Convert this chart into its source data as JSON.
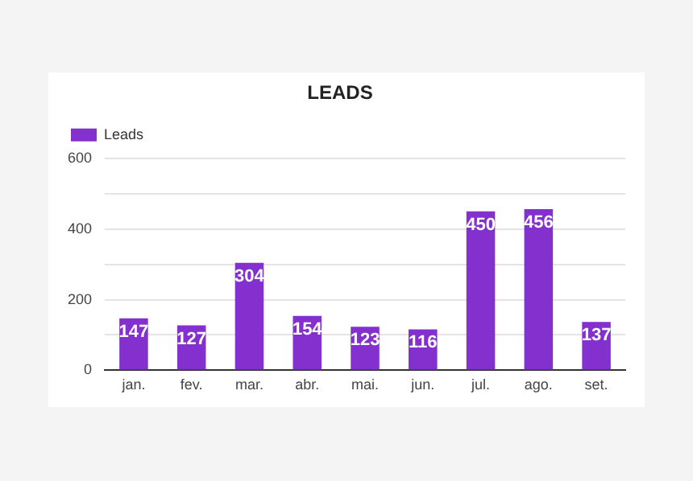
{
  "chart_data": {
    "type": "bar",
    "title": "LEADS",
    "categories": [
      "jan.",
      "fev.",
      "mar.",
      "abr.",
      "mai.",
      "jun.",
      "jul.",
      "ago.",
      "set."
    ],
    "series": [
      {
        "name": "Leads",
        "color": "#8430ce",
        "values": [
          147,
          127,
          304,
          154,
          123,
          116,
          450,
          456,
          137
        ]
      }
    ],
    "ylim": [
      0,
      600
    ],
    "yticks": [
      0,
      {
        "value": 100,
        "label": null
      },
      200,
      {
        "value": 300,
        "label": null
      },
      400,
      {
        "value": 500,
        "label": null
      },
      600
    ],
    "grid": "y",
    "legend": "top left",
    "data_labels": true
  }
}
